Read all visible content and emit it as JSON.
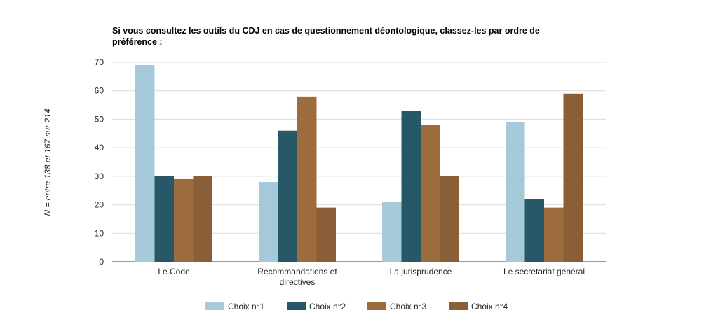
{
  "chart_data": {
    "type": "bar",
    "title_line1": "Si vous consultez les outils du CDJ en cas de questionnement déontologique, classez-les par ordre de",
    "title_line2": "préférence :",
    "ylabel": "N = entre 138 et 167 sur 214",
    "xlabel": "",
    "ylim": [
      0,
      70
    ],
    "yticks": [
      0,
      10,
      20,
      30,
      40,
      50,
      60,
      70
    ],
    "grid": true,
    "legend_position": "bottom",
    "categories": [
      [
        "Le Code"
      ],
      [
        "Recommandations et",
        "directives"
      ],
      [
        "La jurisprudence"
      ],
      [
        "Le secrétariat général"
      ]
    ],
    "series": [
      {
        "name": "Choix n°1",
        "color": "#a6c9d9",
        "values": [
          69,
          28,
          21,
          49
        ]
      },
      {
        "name": "Choix n°2",
        "color": "#265867",
        "values": [
          30,
          46,
          53,
          22
        ]
      },
      {
        "name": "Choix n°3",
        "color": "#9d6c3e",
        "values": [
          29,
          58,
          48,
          19
        ]
      },
      {
        "name": "Choix n°4",
        "color": "#8a5e36",
        "values": [
          30,
          19,
          30,
          59
        ]
      }
    ]
  }
}
